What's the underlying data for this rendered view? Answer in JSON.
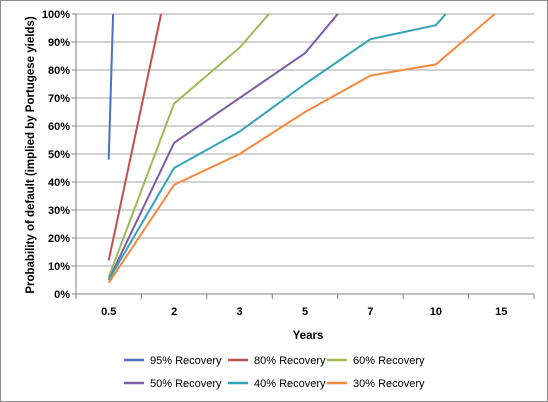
{
  "chart_data": {
    "type": "line",
    "title": "",
    "xlabel": "Years",
    "ylabel": "Probability of default (implied by Portugese yields)",
    "categories": [
      "0.5",
      "2",
      "3",
      "5",
      "7",
      "10",
      "15"
    ],
    "y_ticks": [
      "0%",
      "10%",
      "20%",
      "30%",
      "40%",
      "50%",
      "60%",
      "70%",
      "80%",
      "90%",
      "100%"
    ],
    "ylim": [
      0,
      100
    ],
    "grid": "horizontal",
    "legend_position": "bottom",
    "series": [
      {
        "name": "95% Recovery",
        "color": "#4472c4",
        "points": [
          [
            0.5,
            48
          ],
          [
            0.6,
            100
          ]
        ]
      },
      {
        "name": "80% Recovery",
        "color": "#c0504d",
        "points": [
          [
            0.5,
            12
          ],
          [
            1.7,
            100
          ]
        ]
      },
      {
        "name": "60% Recovery",
        "color": "#9bbb59",
        "points": [
          [
            0.5,
            6
          ],
          [
            2,
            68
          ],
          [
            3,
            88
          ],
          [
            3.45,
            100
          ]
        ]
      },
      {
        "name": "50% Recovery",
        "color": "#7f5ca7",
        "points": [
          [
            0.5,
            5
          ],
          [
            2,
            54
          ],
          [
            3,
            70
          ],
          [
            4,
            86
          ],
          [
            4.5,
            100
          ]
        ]
      },
      {
        "name": "40% Recovery",
        "color": "#34a3b8",
        "points": [
          [
            0.5,
            5
          ],
          [
            2,
            45
          ],
          [
            3,
            58
          ],
          [
            4,
            75
          ],
          [
            5,
            91
          ],
          [
            6,
            96
          ],
          [
            6.15,
            100
          ]
        ]
      },
      {
        "name": "30% Recovery",
        "color": "#f7883e",
        "points": [
          [
            0.5,
            4
          ],
          [
            2,
            39
          ],
          [
            3,
            50
          ],
          [
            4,
            65
          ],
          [
            5,
            78
          ],
          [
            6,
            82
          ],
          [
            6.9,
            100
          ]
        ]
      }
    ]
  }
}
